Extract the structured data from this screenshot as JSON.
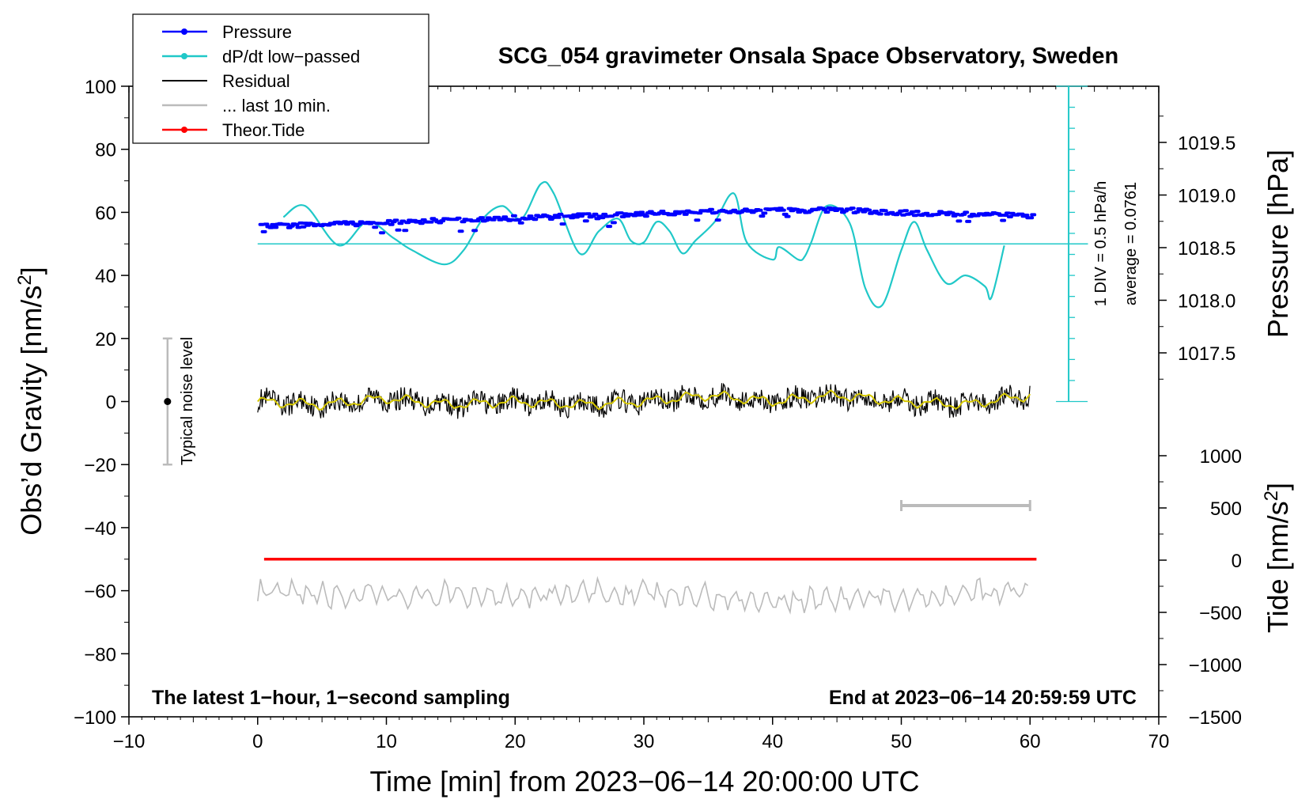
{
  "chart_data": {
    "type": "line",
    "title": "SCG_054 gravimeter Onsala Space Observatory, Sweden",
    "xlabel": "Time [min] from 2023−06−14 20:00:00 UTC",
    "ylabel_main": "Obs’d Gravity [nm/s",
    "ylabel_main_sup": "2",
    "ylabel_main_end": "]",
    "ylabel_pressure": "Pressure [hPa]",
    "ylabel_tide": "Tide [nm/s",
    "ylabel_tide_sup": "2",
    "ylabel_tide_end": "]",
    "xlim": [
      -10,
      70
    ],
    "ylim": [
      -100,
      100
    ],
    "x_ticks": [
      "−10",
      "0",
      "10",
      "20",
      "30",
      "40",
      "50",
      "60",
      "70"
    ],
    "x_tick_values": [
      -10,
      0,
      10,
      20,
      30,
      40,
      50,
      60,
      70
    ],
    "y_ticks": [
      "100",
      "80",
      "60",
      "40",
      "20",
      "0",
      "−20",
      "−40",
      "−60",
      "−80",
      "−100"
    ],
    "y_tick_values": [
      100,
      80,
      60,
      40,
      20,
      0,
      -20,
      -40,
      -60,
      -80,
      -100
    ],
    "pressure_axis": {
      "range": [
        1017.0,
        1020.0
      ],
      "ticks": [
        "1019.5",
        "1019.0",
        "1018.5",
        "1018.0",
        "1017.5"
      ],
      "tick_values": [
        1019.5,
        1019.0,
        1018.5,
        1018.0,
        1017.5
      ]
    },
    "tide_axis": {
      "range": [
        -1500,
        1000
      ],
      "ticks": [
        "1000",
        "500",
        "0",
        "−500",
        "−1000",
        "−1500"
      ],
      "tick_values": [
        1000,
        500,
        0,
        -500,
        -1000,
        -1500
      ]
    },
    "legend": [
      {
        "label": "Pressure",
        "color": "#0000ff",
        "marker": true
      },
      {
        "label": "dP/dt low−passed",
        "color": "#20c8c8",
        "marker": true
      },
      {
        "label": "Residual",
        "color": "#000000",
        "marker": false
      },
      {
        "label": "... last 10 min.",
        "color": "#bbbbbb",
        "marker": false
      },
      {
        "label": "Theor.Tide",
        "color": "#ff0000",
        "marker": true
      }
    ],
    "series": [
      {
        "name": "Pressure",
        "axis": "pressure",
        "color": "#0000ff",
        "x": [
          0,
          5,
          10,
          15,
          20,
          25,
          30,
          35,
          40,
          45,
          50,
          55,
          60
        ],
        "values": [
          1018.7,
          1018.72,
          1018.74,
          1018.76,
          1018.78,
          1018.8,
          1018.82,
          1018.84,
          1018.85,
          1018.86,
          1018.83,
          1018.82,
          1018.8
        ]
      },
      {
        "name": "dP/dt low−passed",
        "color": "#20c8c8",
        "x": [
          2,
          3.7,
          6.3,
          8.5,
          10.5,
          12,
          14.5,
          16,
          17.5,
          19,
          20.5,
          22,
          23,
          25,
          26.5,
          28,
          29,
          30,
          31,
          32,
          33,
          34,
          35.5,
          37,
          38,
          40,
          40.5,
          42,
          42.5,
          43,
          44.2,
          46,
          47.2,
          48.5,
          50,
          51,
          52,
          53.5,
          55,
          56.5,
          57,
          58
        ],
        "values": [
          58.5,
          62,
          49.5,
          57,
          52,
          48,
          43.5,
          48,
          58,
          62,
          58,
          69,
          66,
          47,
          54,
          58,
          51,
          50.5,
          57,
          54,
          47,
          51,
          57,
          66,
          50.5,
          45,
          49,
          45,
          46,
          50.5,
          62,
          56.5,
          36,
          30.5,
          48,
          57,
          48,
          37.5,
          40,
          36.5,
          33,
          49.5
        ]
      },
      {
        "name": "Residual",
        "color": "#000000",
        "note": "1-second residual noise around a smooth yellow trend",
        "x": [
          0,
          5,
          10,
          15,
          20,
          25,
          30,
          35,
          40,
          45,
          50,
          55,
          60
        ],
        "values": [
          0,
          -1,
          1,
          -1,
          0,
          -1,
          0,
          2,
          0,
          2,
          0,
          -1,
          2
        ]
      },
      {
        "name": "... last 10 min.",
        "color": "#bbbbbb",
        "note": "residual of last 10 minutes, plotted with -60 offset",
        "x": [
          0,
          10,
          20,
          30,
          40,
          50,
          60
        ],
        "values": [
          -61,
          -62,
          -61,
          -61,
          -63,
          -62,
          -60
        ]
      },
      {
        "name": "Theor.Tide",
        "color": "#ff0000",
        "x": [
          0.5,
          60.5
        ],
        "values": [
          -50,
          -50
        ]
      }
    ],
    "typical_noise_level": {
      "label": "Typical noise level",
      "x": -7,
      "center": 0,
      "low": -20,
      "high": 20
    },
    "last_10_min_bracket": {
      "x_start": 50,
      "x_end": 60,
      "y": -33
    },
    "pressure_scale_note": "1 DIV = 0.5 hPa/h",
    "average_note": "average = 0.0761",
    "dpdt_zero_line": 50,
    "note_left": "The latest 1−hour, 1−second sampling",
    "note_right": "End at 2023−06−14 20:59:59 UTC"
  }
}
